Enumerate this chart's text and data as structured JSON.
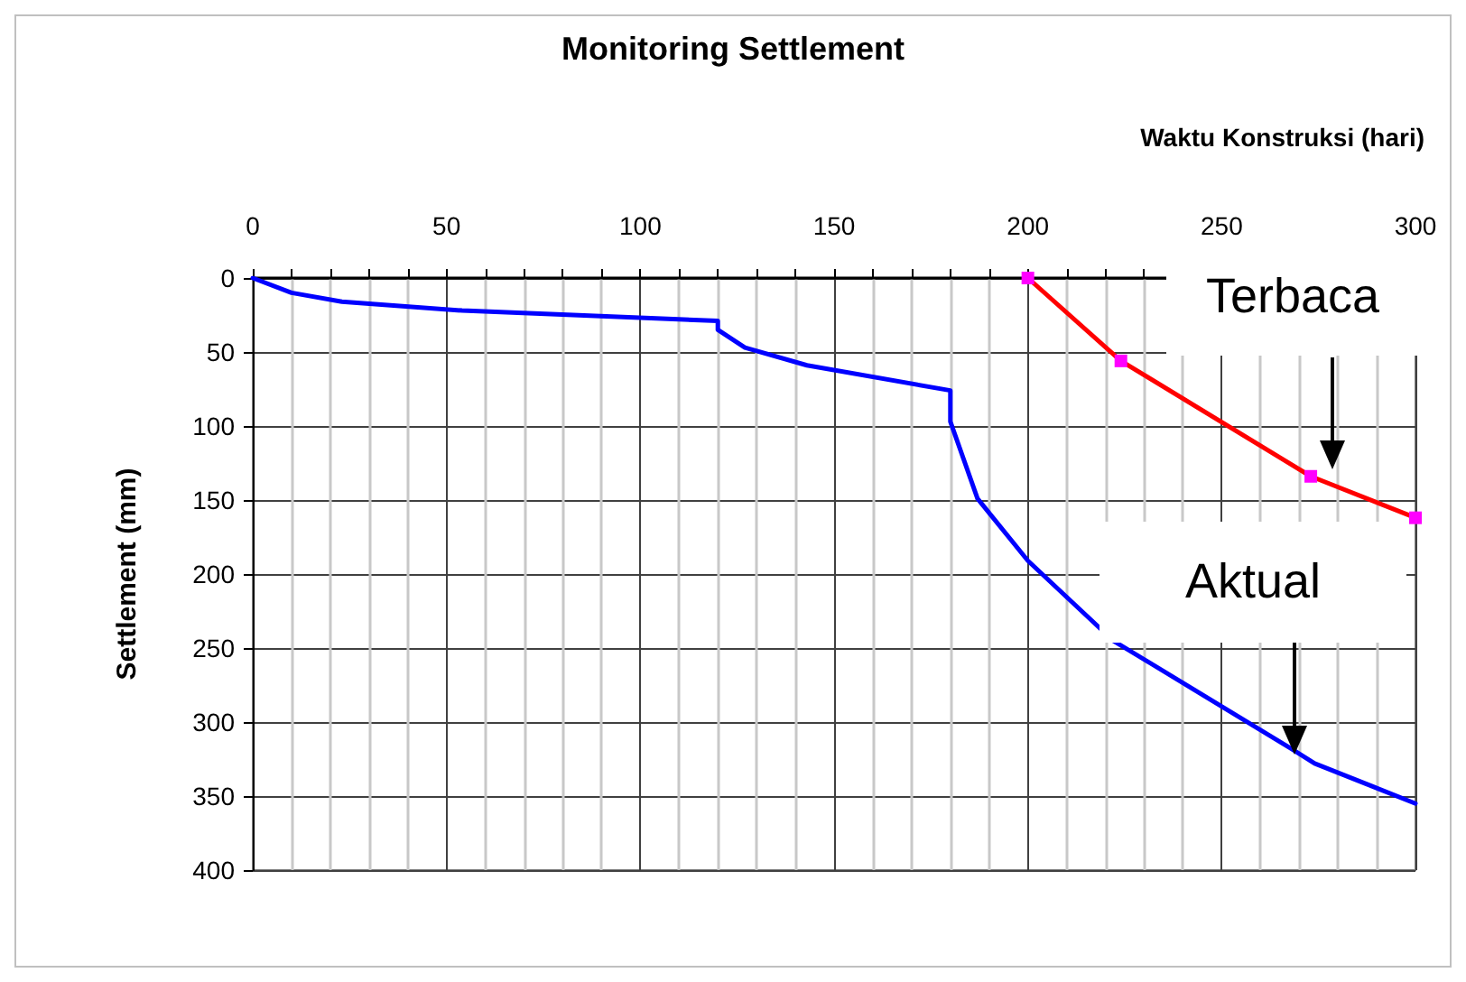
{
  "chart_data": {
    "type": "line",
    "title": "Monitoring Settlement",
    "xlabel": "Waktu Konstruksi (hari)",
    "ylabel": "Settlement (mm)",
    "xlim": [
      0,
      300
    ],
    "xticks": [
      0,
      50,
      100,
      150,
      200,
      250,
      300
    ],
    "ylim": [
      400,
      0
    ],
    "yticks": [
      0,
      50,
      100,
      150,
      200,
      250,
      300,
      350,
      400
    ],
    "grid": true,
    "line_style": "solid",
    "series": [
      {
        "color": "#0000ff",
        "marker": "none",
        "x": [
          0,
          10,
          23,
          54,
          120,
          120,
          127,
          143,
          180,
          180,
          187,
          200,
          222,
          268,
          274,
          300
        ],
        "values": [
          0,
          10,
          16,
          22,
          29,
          35,
          47,
          59,
          76,
          97,
          149,
          191,
          245,
          318,
          328,
          355
        ]
      },
      {
        "color": "#ff0000",
        "marker": "square",
        "x": [
          200,
          224,
          273,
          300
        ],
        "values": [
          0,
          56,
          134,
          162
        ]
      }
    ],
    "annotations": [
      "Terbaca",
      "Aktual"
    ]
  }
}
